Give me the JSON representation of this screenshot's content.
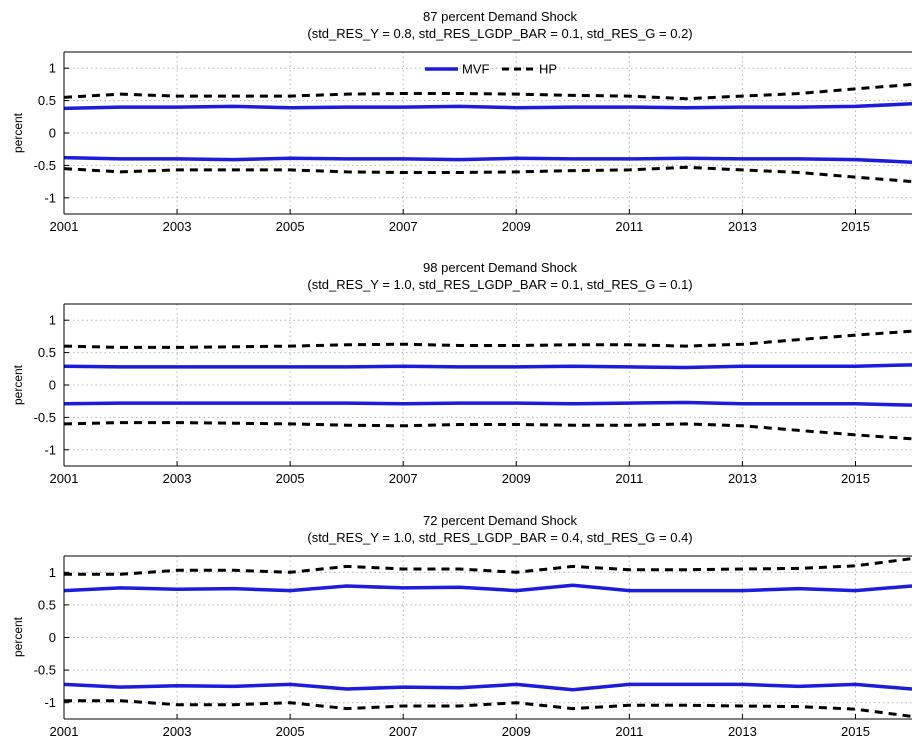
{
  "colors": {
    "mvf": "#1c1cdc",
    "hp": "#000000",
    "grid": "#b4b4b4",
    "frame": "#000000"
  },
  "legend": {
    "mvf_label": "MVF",
    "hp_label": "HP",
    "placement": "top-center"
  },
  "chart_data": [
    {
      "type": "line",
      "title": "87 percent Demand Shock",
      "subtitle": "(std_RES_Y = 0.8, std_RES_LGDP_BAR = 0.1, std_RES_G = 0.2)",
      "ylabel": "percent",
      "xlabel": "",
      "xlim": [
        2001,
        2016
      ],
      "ylim": [
        -1.25,
        1.25
      ],
      "x_ticks": [
        "2001",
        "2003",
        "2005",
        "2007",
        "2009",
        "2011",
        "2013",
        "2015"
      ],
      "y_ticks": [
        "1",
        "0.5",
        "0",
        "-0.5",
        "-1"
      ],
      "grid": true,
      "show_legend": true,
      "x": [
        2001,
        2002,
        2003,
        2004,
        2005,
        2006,
        2007,
        2008,
        2009,
        2010,
        2011,
        2012,
        2013,
        2014,
        2015,
        2016
      ],
      "series": [
        {
          "name": "MVF",
          "style": "solid",
          "values": [
            0.38,
            0.4,
            0.4,
            0.41,
            0.39,
            0.4,
            0.4,
            0.41,
            0.39,
            0.4,
            0.4,
            0.39,
            0.4,
            0.4,
            0.41,
            0.45
          ]
        },
        {
          "style": "solid",
          "values": [
            -0.38,
            -0.4,
            -0.4,
            -0.41,
            -0.39,
            -0.4,
            -0.4,
            -0.41,
            -0.39,
            -0.4,
            -0.4,
            -0.39,
            -0.4,
            -0.4,
            -0.41,
            -0.45
          ]
        },
        {
          "name": "HP",
          "style": "dashed",
          "values": [
            0.55,
            0.6,
            0.57,
            0.57,
            0.57,
            0.6,
            0.61,
            0.61,
            0.6,
            0.58,
            0.57,
            0.53,
            0.57,
            0.61,
            0.68,
            0.75
          ]
        },
        {
          "style": "dashed",
          "values": [
            -0.55,
            -0.6,
            -0.57,
            -0.57,
            -0.57,
            -0.6,
            -0.61,
            -0.61,
            -0.6,
            -0.58,
            -0.57,
            -0.53,
            -0.57,
            -0.61,
            -0.68,
            -0.75
          ]
        }
      ]
    },
    {
      "type": "line",
      "title": "98 percent Demand Shock",
      "subtitle": "(std_RES_Y = 1.0, std_RES_LGDP_BAR = 0.1, std_RES_G = 0.1)",
      "ylabel": "percent",
      "xlabel": "",
      "xlim": [
        2001,
        2016
      ],
      "ylim": [
        -1.25,
        1.25
      ],
      "x_ticks": [
        "2001",
        "2003",
        "2005",
        "2007",
        "2009",
        "2011",
        "2013",
        "2015"
      ],
      "y_ticks": [
        "1",
        "0.5",
        "0",
        "-0.5",
        "-1"
      ],
      "grid": true,
      "show_legend": false,
      "x": [
        2001,
        2002,
        2003,
        2004,
        2005,
        2006,
        2007,
        2008,
        2009,
        2010,
        2011,
        2012,
        2013,
        2014,
        2015,
        2016
      ],
      "series": [
        {
          "style": "solid",
          "values": [
            0.29,
            0.28,
            0.28,
            0.28,
            0.28,
            0.28,
            0.29,
            0.28,
            0.28,
            0.29,
            0.28,
            0.27,
            0.29,
            0.29,
            0.29,
            0.31
          ]
        },
        {
          "style": "solid",
          "values": [
            -0.29,
            -0.28,
            -0.28,
            -0.28,
            -0.28,
            -0.28,
            -0.29,
            -0.28,
            -0.28,
            -0.29,
            -0.28,
            -0.27,
            -0.29,
            -0.29,
            -0.29,
            -0.31
          ]
        },
        {
          "style": "dashed",
          "values": [
            0.6,
            0.58,
            0.58,
            0.59,
            0.6,
            0.62,
            0.63,
            0.61,
            0.61,
            0.62,
            0.62,
            0.6,
            0.63,
            0.7,
            0.77,
            0.83
          ]
        },
        {
          "style": "dashed",
          "values": [
            -0.6,
            -0.58,
            -0.58,
            -0.59,
            -0.6,
            -0.62,
            -0.63,
            -0.61,
            -0.61,
            -0.62,
            -0.62,
            -0.6,
            -0.63,
            -0.7,
            -0.77,
            -0.83
          ]
        }
      ]
    },
    {
      "type": "line",
      "title": "72 percent Demand Shock",
      "subtitle": "(std_RES_Y = 1.0, std_RES_LGDP_BAR = 0.4, std_RES_G = 0.4)",
      "ylabel": "percent",
      "xlabel": "",
      "xlim": [
        2001,
        2016
      ],
      "ylim": [
        -1.25,
        1.25
      ],
      "x_ticks": [
        "2001",
        "2003",
        "2005",
        "2007",
        "2009",
        "2011",
        "2013",
        "2015"
      ],
      "y_ticks": [
        "1",
        "0.5",
        "0",
        "-0.5",
        "-1"
      ],
      "grid": true,
      "show_legend": false,
      "x": [
        2001,
        2002,
        2003,
        2004,
        2005,
        2006,
        2007,
        2008,
        2009,
        2010,
        2011,
        2012,
        2013,
        2014,
        2015,
        2016
      ],
      "series": [
        {
          "style": "solid",
          "values": [
            0.72,
            0.76,
            0.74,
            0.75,
            0.72,
            0.79,
            0.76,
            0.77,
            0.72,
            0.8,
            0.72,
            0.72,
            0.72,
            0.75,
            0.72,
            0.79
          ]
        },
        {
          "style": "solid",
          "values": [
            -0.72,
            -0.76,
            -0.74,
            -0.75,
            -0.72,
            -0.79,
            -0.76,
            -0.77,
            -0.72,
            -0.8,
            -0.72,
            -0.72,
            -0.72,
            -0.75,
            -0.72,
            -0.79
          ]
        },
        {
          "style": "dashed",
          "values": [
            0.97,
            0.97,
            1.03,
            1.03,
            1.0,
            1.09,
            1.05,
            1.05,
            1.0,
            1.09,
            1.04,
            1.04,
            1.05,
            1.06,
            1.1,
            1.21
          ]
        },
        {
          "style": "dashed",
          "values": [
            -0.97,
            -0.97,
            -1.03,
            -1.03,
            -1.0,
            -1.09,
            -1.05,
            -1.05,
            -1.0,
            -1.09,
            -1.04,
            -1.04,
            -1.05,
            -1.06,
            -1.1,
            -1.21
          ]
        }
      ]
    }
  ]
}
